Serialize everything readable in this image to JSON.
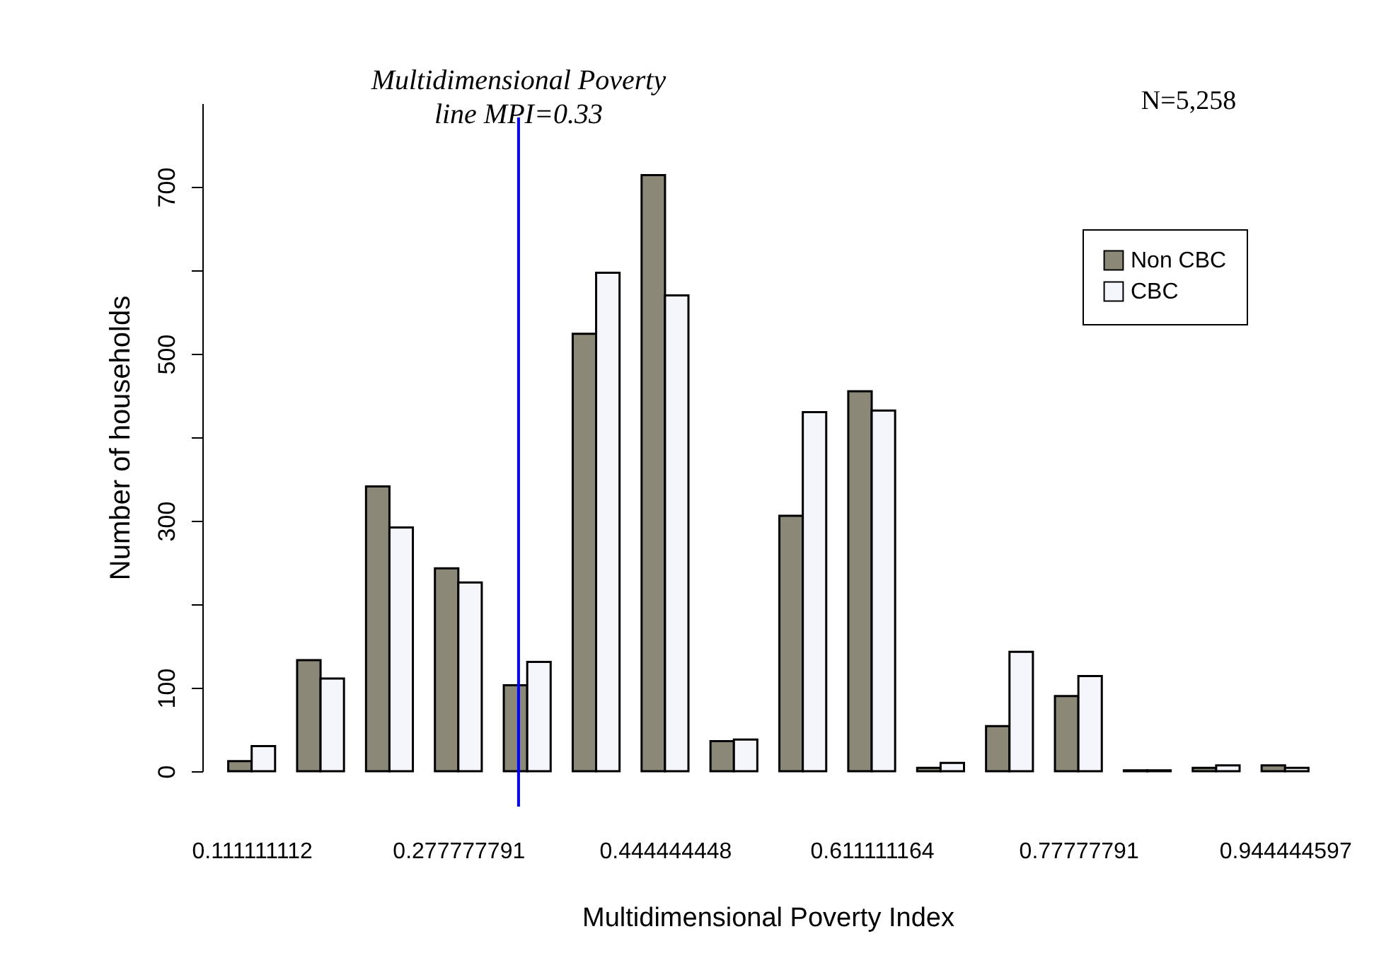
{
  "chart_data": {
    "type": "bar",
    "categories": [
      "0.111111112",
      null,
      null,
      "0.277777791",
      null,
      null,
      "0.444444448",
      null,
      null,
      "0.611111164",
      null,
      null,
      "0.77777791",
      null,
      null,
      "0.944444597"
    ],
    "series": [
      {
        "name": "Non CBC",
        "color": "#8b8878",
        "values": [
          12,
          133,
          341,
          243,
          103,
          524,
          714,
          36,
          306,
          455,
          4,
          54,
          90,
          1,
          4,
          7
        ]
      },
      {
        "name": "CBC",
        "color": "#f5f6fb",
        "values": [
          30,
          111,
          292,
          226,
          131,
          597,
          570,
          38,
          430,
          432,
          10,
          143,
          114,
          1,
          7,
          4
        ]
      }
    ],
    "xlabel": "Multidimensional Poverty Index",
    "ylabel": "Number of households",
    "ylim": [
      0,
      800
    ],
    "yticks": [
      0,
      100,
      {
        "value": 200,
        "label": null
      },
      300,
      {
        "value": 400,
        "label": null
      },
      500,
      {
        "value": 600,
        "label": null
      },
      700
    ],
    "annotations": [
      "Multidimensional Poverty\nline MPI=0.33",
      "N=5,258"
    ],
    "legend": "top right",
    "grid": false
  }
}
